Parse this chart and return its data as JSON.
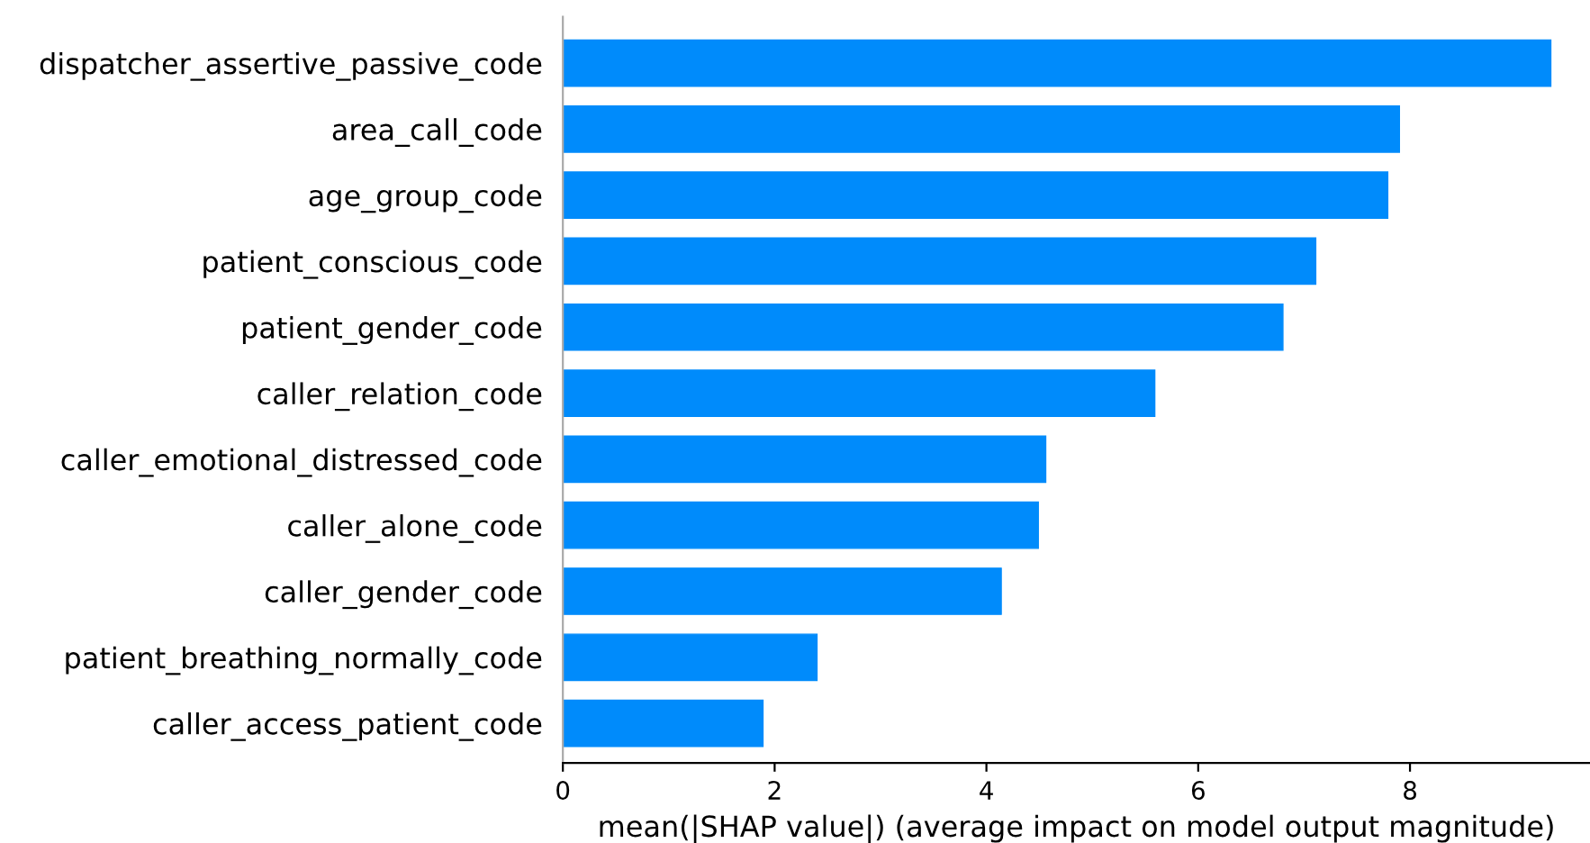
{
  "chart_data": {
    "type": "bar",
    "orientation": "horizontal",
    "xlabel": "mean(|SHAP value|) (average impact on model output magnitude)",
    "categories": [
      "dispatcher_assertive_passive_code",
      "area_call_code",
      "age_group_code",
      "patient_conscious_code",
      "patient_gender_code",
      "caller_relation_code",
      "caller_emotional_distressed_code",
      "caller_alone_code",
      "caller_gender_code",
      "patient_breathing_normally_code",
      "caller_access_patient_code"
    ],
    "values": [
      9.33,
      7.9,
      7.79,
      7.11,
      6.8,
      5.59,
      4.56,
      4.49,
      4.14,
      2.4,
      1.89
    ],
    "color": "#008bfb",
    "xlim": [
      0,
      9.7
    ],
    "xticks": [
      0,
      2,
      4,
      6,
      8
    ],
    "grid": false
  }
}
